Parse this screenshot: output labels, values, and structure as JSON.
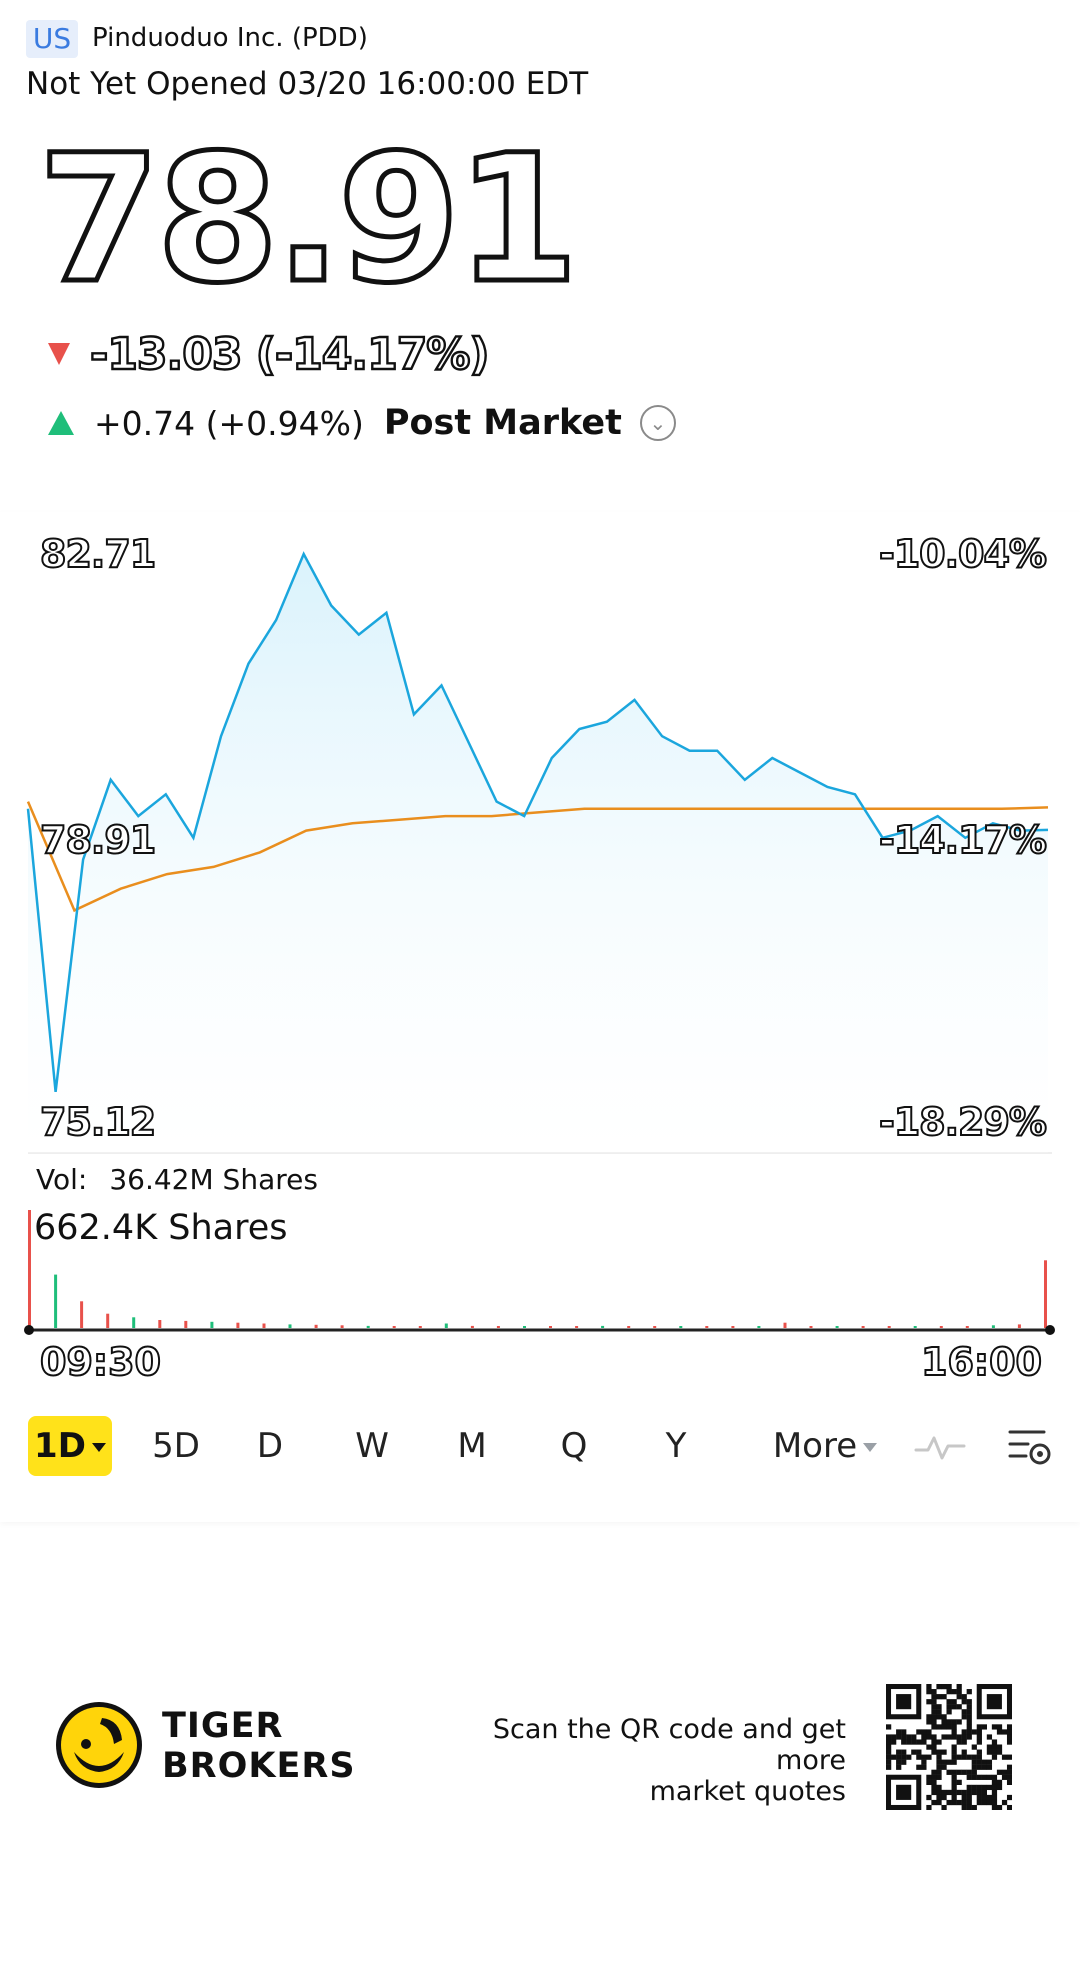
{
  "header": {
    "market_badge": "US",
    "ticker": "Pinduoduo Inc. (PDD)",
    "status": "Not Yet Opened 03/20 16:00:00 EDT"
  },
  "quote": {
    "price": "78.91",
    "change": "-13.03 (-14.17%)",
    "post_change": "+0.74 (+0.94%)",
    "post_label": "Post Market"
  },
  "chart": {
    "high_price": "82.71",
    "mid_price": "78.91",
    "low_price": "75.12",
    "high_pct": "-10.04%",
    "mid_pct": "-14.17%",
    "low_pct": "-18.29%",
    "start_time": "09:30",
    "end_time": "16:00",
    "vol_label": "Vol:",
    "vol_value": "36.42M Shares",
    "vol_max": "662.4K Shares"
  },
  "periods": [
    "1D",
    "5D",
    "D",
    "W",
    "M",
    "Q",
    "Y",
    "More"
  ],
  "colors": {
    "price_line": "#1ba6dd",
    "avg_line": "#e98e1e",
    "up": "#1fbe7a",
    "down": "#e8514b",
    "accent": "#ffe21a"
  },
  "footer": {
    "brand_line1": "TIGER",
    "brand_line2": "BROKERS",
    "scan_line1": "Scan the QR code and get more",
    "scan_line2": "market quotes"
  },
  "chart_data": {
    "type": "line",
    "x_labels": [
      "09:30",
      "16:00"
    ],
    "ylim": [
      75.12,
      82.71
    ],
    "right_axis_pct": [
      "-10.04%",
      "-14.17%",
      "-18.29%"
    ],
    "series": [
      {
        "values": [
          79.2,
          75.3,
          78.5,
          79.6,
          79.1,
          79.4,
          78.8,
          80.2,
          81.2,
          81.8,
          82.71,
          82.0,
          81.6,
          81.9,
          80.5,
          80.9,
          80.1,
          79.3,
          79.1,
          79.9,
          80.3,
          80.4,
          80.7,
          80.2,
          80.0,
          80.0,
          79.6,
          79.9,
          79.7,
          79.5,
          79.4,
          78.8,
          78.9,
          79.1,
          78.8,
          79.0,
          78.9,
          78.91
        ]
      },
      {
        "values": [
          79.3,
          77.8,
          78.1,
          78.3,
          78.4,
          78.6,
          78.9,
          79.0,
          79.05,
          79.1,
          79.1,
          79.15,
          79.2,
          79.2,
          79.2,
          79.2,
          79.2,
          79.2,
          79.2,
          79.2,
          79.2,
          79.2,
          79.22
        ]
      }
    ],
    "volume_values": [
      662.4,
      300,
      150,
      80,
      60,
      45,
      40,
      35,
      30,
      25,
      20,
      18,
      15,
      12,
      10,
      10,
      25,
      12,
      8,
      5,
      5,
      5,
      12,
      5,
      5,
      5,
      5,
      5,
      5,
      30,
      5,
      5,
      5,
      5,
      5,
      8,
      10,
      15,
      20,
      380
    ]
  }
}
